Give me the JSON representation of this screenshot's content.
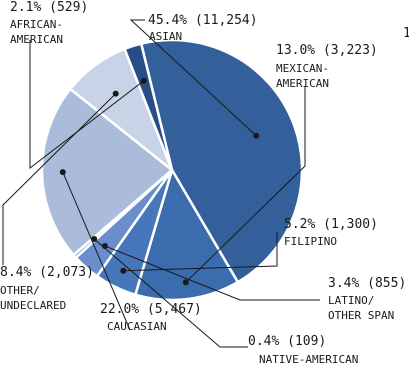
{
  "chart_data": {
    "type": "pie",
    "title": "",
    "slices": [
      {
        "label": "ASIAN",
        "label_lines": [
          "ASIAN"
        ],
        "percent": "45.4%",
        "count": "11,254",
        "value": 11254,
        "color": "#33609a"
      },
      {
        "label": "MEXICAN-AMERICAN",
        "label_lines": [
          "MEXICAN-",
          "AMERICAN"
        ],
        "percent": "13.0%",
        "count": "3,223",
        "value": 3223,
        "color": "#3a6cae"
      },
      {
        "label": "FILIPINO",
        "label_lines": [
          "FILIPINO"
        ],
        "percent": "5.2%",
        "count": "1,300",
        "value": 1300,
        "color": "#4777bb"
      },
      {
        "label": "LATINO/OTHER SPANISH",
        "label_lines": [
          "LATINO/",
          "OTHER SPAN"
        ],
        "percent": "3.4%",
        "count": "855",
        "value": 855,
        "color": "#6a8ecb"
      },
      {
        "label": "NATIVE-AMERICAN",
        "label_lines": [
          "NATIVE-AMERICAN"
        ],
        "percent": "0.4%",
        "count": "109",
        "value": 109,
        "color": "#7b9bd0"
      },
      {
        "label": "CAUCASIAN",
        "label_lines": [
          "CAUCASIAN"
        ],
        "percent": "22.0%",
        "count": "5,467",
        "value": 5467,
        "color": "#abbcda"
      },
      {
        "label": "OTHER/UNDECLARED",
        "label_lines": [
          "OTHER/",
          "UNDECLARED"
        ],
        "percent": "8.4%",
        "count": "2,073",
        "value": 2073,
        "color": "#c9d3e8"
      },
      {
        "label": "AFRICAN-AMERICAN",
        "label_lines": [
          "AFRICAN-",
          "AMERICAN"
        ],
        "percent": "2.1%",
        "count": "529",
        "value": 529,
        "color": "#274f87"
      }
    ]
  },
  "stray_text": "1"
}
